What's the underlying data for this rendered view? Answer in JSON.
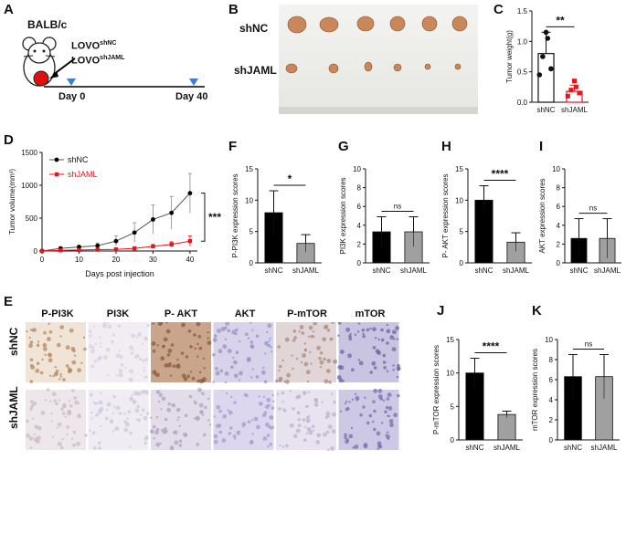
{
  "panels": {
    "A": {
      "letter": "A",
      "strain": "BALB/c",
      "group1": "LOVO",
      "group1_sup": "shNC",
      "group2": "LOVO",
      "group2_sup": "shJAML",
      "day_start": "Day 0",
      "day_end": "Day 40"
    },
    "B": {
      "letter": "B",
      "row1": "shNC",
      "row2": "shJAML"
    },
    "C": {
      "letter": "C"
    },
    "D": {
      "letter": "D"
    },
    "E": {
      "letter": "E",
      "stains": [
        "P-PI3K",
        "PI3K",
        "P- AKT",
        "AKT",
        "P-mTOR",
        "mTOR"
      ],
      "rows": [
        "shNC",
        "shJAML"
      ]
    },
    "F": {
      "letter": "F"
    },
    "G": {
      "letter": "G"
    },
    "H": {
      "letter": "H"
    },
    "I": {
      "letter": "I"
    },
    "J": {
      "letter": "J"
    },
    "K": {
      "letter": "K"
    }
  },
  "colors": {
    "shNC": "#000000",
    "shJAML_line": "#e8131b",
    "shJAML_bar": "#a0a0a0",
    "he_brown": "#9b6a48",
    "he_blue": "#7a6fa8"
  },
  "chart_data": [
    {
      "id": "C",
      "type": "bar",
      "ylabel": "Tumor weight(g)",
      "categories": [
        "shNC",
        "shJAML"
      ],
      "values": [
        0.8,
        0.18
      ],
      "errors": [
        0.35,
        0.1
      ],
      "points": [
        [
          1.15,
          1.05,
          0.75,
          0.55,
          0.45
        ],
        [
          0.35,
          0.25,
          0.2,
          0.15,
          0.1
        ]
      ],
      "ylim": [
        0,
        1.5
      ],
      "yticks": [
        0,
        0.5,
        1.0,
        1.5
      ],
      "ytick_labels": [
        "0.0",
        "0.5",
        "1.0",
        "1.5"
      ],
      "significance": "**"
    },
    {
      "id": "D",
      "type": "line",
      "ylabel": "Tumor volume(mm³)",
      "xlabel": "Days post injection",
      "xlim": [
        0,
        42
      ],
      "ylim": [
        0,
        1500
      ],
      "xticks": [
        0,
        10,
        20,
        30,
        40
      ],
      "yticks": [
        0,
        500,
        1000,
        1500
      ],
      "series": [
        {
          "name": "shNC",
          "x": [
            0,
            5,
            10,
            15,
            20,
            25,
            30,
            35,
            40
          ],
          "y": [
            0,
            40,
            60,
            80,
            150,
            280,
            480,
            580,
            880
          ],
          "err": [
            0,
            20,
            30,
            40,
            80,
            150,
            220,
            250,
            300
          ]
        },
        {
          "name": "shJAML",
          "x": [
            0,
            5,
            10,
            15,
            20,
            25,
            30,
            35,
            40
          ],
          "y": [
            0,
            10,
            15,
            20,
            25,
            40,
            70,
            100,
            150
          ],
          "err": [
            0,
            5,
            8,
            10,
            12,
            20,
            30,
            40,
            80
          ]
        }
      ],
      "significance": "***"
    },
    {
      "id": "F",
      "type": "bar",
      "ylabel": "P-PI3K expression scores",
      "categories": [
        "shNC",
        "shJAML"
      ],
      "values": [
        8,
        3.1
      ],
      "errors": [
        3.5,
        1.4
      ],
      "ylim": [
        0,
        15
      ],
      "yticks": [
        0,
        5,
        10,
        15
      ],
      "significance": "*"
    },
    {
      "id": "G",
      "type": "bar",
      "ylabel": "PI3K expression scores",
      "categories": [
        "shNC",
        "shJAML"
      ],
      "values": [
        3.3,
        3.3
      ],
      "errors": [
        1.6,
        1.6
      ],
      "ylim": [
        0,
        10
      ],
      "yticks": [
        0,
        2,
        4,
        6,
        8,
        10
      ],
      "significance": "ns"
    },
    {
      "id": "H",
      "type": "bar",
      "ylabel": "P- AKT expression scores",
      "categories": [
        "shNC",
        "shJAML"
      ],
      "values": [
        10,
        3.3
      ],
      "errors": [
        2.3,
        1.5
      ],
      "ylim": [
        0,
        15
      ],
      "yticks": [
        0,
        5,
        10,
        15
      ],
      "significance": "****"
    },
    {
      "id": "I",
      "type": "bar",
      "ylabel": "AKT expression scores",
      "categories": [
        "shNC",
        "shJAML"
      ],
      "values": [
        2.6,
        2.6
      ],
      "errors": [
        2.1,
        2.1
      ],
      "ylim": [
        0,
        10
      ],
      "yticks": [
        0,
        2,
        4,
        6,
        8,
        10
      ],
      "significance": "ns"
    },
    {
      "id": "J",
      "type": "bar",
      "ylabel": "P-mTOR expression scores",
      "categories": [
        "shNC",
        "shJAML"
      ],
      "values": [
        10,
        3.8
      ],
      "errors": [
        2.2,
        0.5
      ],
      "ylim": [
        0,
        15
      ],
      "yticks": [
        0,
        5,
        10,
        15
      ],
      "significance": "****"
    },
    {
      "id": "K",
      "type": "bar",
      "ylabel": "mTOR expression scores",
      "categories": [
        "shNC",
        "shJAML"
      ],
      "values": [
        6.3,
        6.3
      ],
      "errors": [
        2.2,
        2.2
      ],
      "ylim": [
        0,
        10
      ],
      "yticks": [
        0,
        2,
        4,
        6,
        8,
        10
      ],
      "significance": "ns"
    }
  ]
}
